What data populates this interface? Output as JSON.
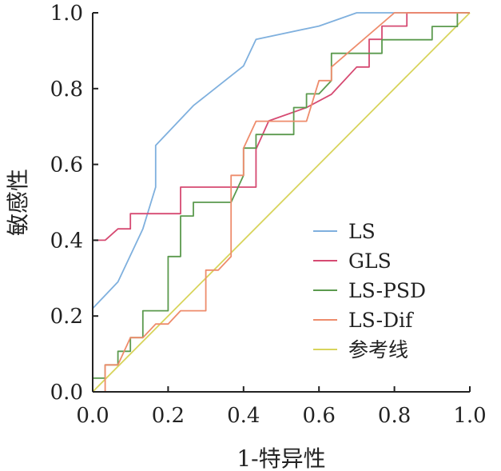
{
  "chart_data": {
    "type": "line",
    "xlabel": "1-特异性",
    "ylabel": "敏感性",
    "xlim": [
      0,
      1
    ],
    "ylim": [
      0,
      1
    ],
    "xticks": [
      0,
      0.2,
      0.4,
      0.6,
      0.8,
      1.0
    ],
    "yticks": [
      0,
      0.2,
      0.4,
      0.6,
      0.8,
      1.0
    ],
    "xtick_labels": [
      "0.0",
      "0.2",
      "0.4",
      "0.6",
      "0.8",
      "1.0"
    ],
    "ytick_labels": [
      "0.0",
      "0.2",
      "0.4",
      "0.6",
      "0.8",
      "1.0"
    ],
    "legend_position": "bottom-right",
    "series": [
      {
        "name": "LS",
        "color": "#7fb0de",
        "points": [
          [
            0,
            0
          ],
          [
            0,
            0.22
          ],
          [
            0.067,
            0.29
          ],
          [
            0.133,
            0.43
          ],
          [
            0.167,
            0.54
          ],
          [
            0.167,
            0.65
          ],
          [
            0.267,
            0.755
          ],
          [
            0.4,
            0.86
          ],
          [
            0.433,
            0.93
          ],
          [
            0.6,
            0.965
          ],
          [
            0.7,
            1.0
          ],
          [
            1.0,
            1.0
          ]
        ]
      },
      {
        "name": "GLS",
        "color": "#d64a72",
        "points": [
          [
            0,
            0
          ],
          [
            0,
            0.4
          ],
          [
            0.033,
            0.4
          ],
          [
            0.067,
            0.43
          ],
          [
            0.1,
            0.43
          ],
          [
            0.1,
            0.47
          ],
          [
            0.233,
            0.47
          ],
          [
            0.233,
            0.54
          ],
          [
            0.433,
            0.54
          ],
          [
            0.433,
            0.64
          ],
          [
            0.467,
            0.715
          ],
          [
            0.567,
            0.75
          ],
          [
            0.633,
            0.785
          ],
          [
            0.7,
            0.857
          ],
          [
            0.733,
            0.857
          ],
          [
            0.733,
            0.93
          ],
          [
            0.767,
            0.93
          ],
          [
            0.767,
            0.965
          ],
          [
            0.833,
            0.965
          ],
          [
            0.833,
            1.0
          ],
          [
            1.0,
            1.0
          ]
        ]
      },
      {
        "name": "LS-PSD",
        "color": "#5b9a4e",
        "points": [
          [
            0,
            0
          ],
          [
            0,
            0.036
          ],
          [
            0.033,
            0.036
          ],
          [
            0.033,
            0.071
          ],
          [
            0.067,
            0.071
          ],
          [
            0.067,
            0.107
          ],
          [
            0.1,
            0.107
          ],
          [
            0.1,
            0.143
          ],
          [
            0.133,
            0.143
          ],
          [
            0.133,
            0.214
          ],
          [
            0.2,
            0.214
          ],
          [
            0.2,
            0.357
          ],
          [
            0.233,
            0.357
          ],
          [
            0.233,
            0.464
          ],
          [
            0.267,
            0.464
          ],
          [
            0.267,
            0.5
          ],
          [
            0.367,
            0.5
          ],
          [
            0.4,
            0.571
          ],
          [
            0.4,
            0.643
          ],
          [
            0.433,
            0.643
          ],
          [
            0.433,
            0.679
          ],
          [
            0.533,
            0.679
          ],
          [
            0.533,
            0.75
          ],
          [
            0.567,
            0.75
          ],
          [
            0.567,
            0.786
          ],
          [
            0.6,
            0.786
          ],
          [
            0.633,
            0.821
          ],
          [
            0.633,
            0.893
          ],
          [
            0.767,
            0.893
          ],
          [
            0.767,
            0.929
          ],
          [
            0.9,
            0.929
          ],
          [
            0.9,
            0.964
          ],
          [
            0.967,
            0.964
          ],
          [
            0.967,
            1.0
          ],
          [
            1.0,
            1.0
          ]
        ]
      },
      {
        "name": "LS-Dif",
        "color": "#ee8c6c",
        "points": [
          [
            0,
            0
          ],
          [
            0.033,
            0
          ],
          [
            0.033,
            0.071
          ],
          [
            0.067,
            0.071
          ],
          [
            0.1,
            0.143
          ],
          [
            0.133,
            0.143
          ],
          [
            0.167,
            0.179
          ],
          [
            0.2,
            0.179
          ],
          [
            0.233,
            0.214
          ],
          [
            0.3,
            0.214
          ],
          [
            0.3,
            0.321
          ],
          [
            0.333,
            0.321
          ],
          [
            0.367,
            0.357
          ],
          [
            0.367,
            0.571
          ],
          [
            0.4,
            0.571
          ],
          [
            0.4,
            0.643
          ],
          [
            0.433,
            0.714
          ],
          [
            0.567,
            0.714
          ],
          [
            0.6,
            0.821
          ],
          [
            0.633,
            0.821
          ],
          [
            0.633,
            0.857
          ],
          [
            0.8,
            1.0
          ],
          [
            1.0,
            1.0
          ]
        ]
      },
      {
        "name": "参考线",
        "color": "#d8d45c",
        "points": [
          [
            0,
            0
          ],
          [
            1,
            1
          ]
        ]
      }
    ]
  }
}
